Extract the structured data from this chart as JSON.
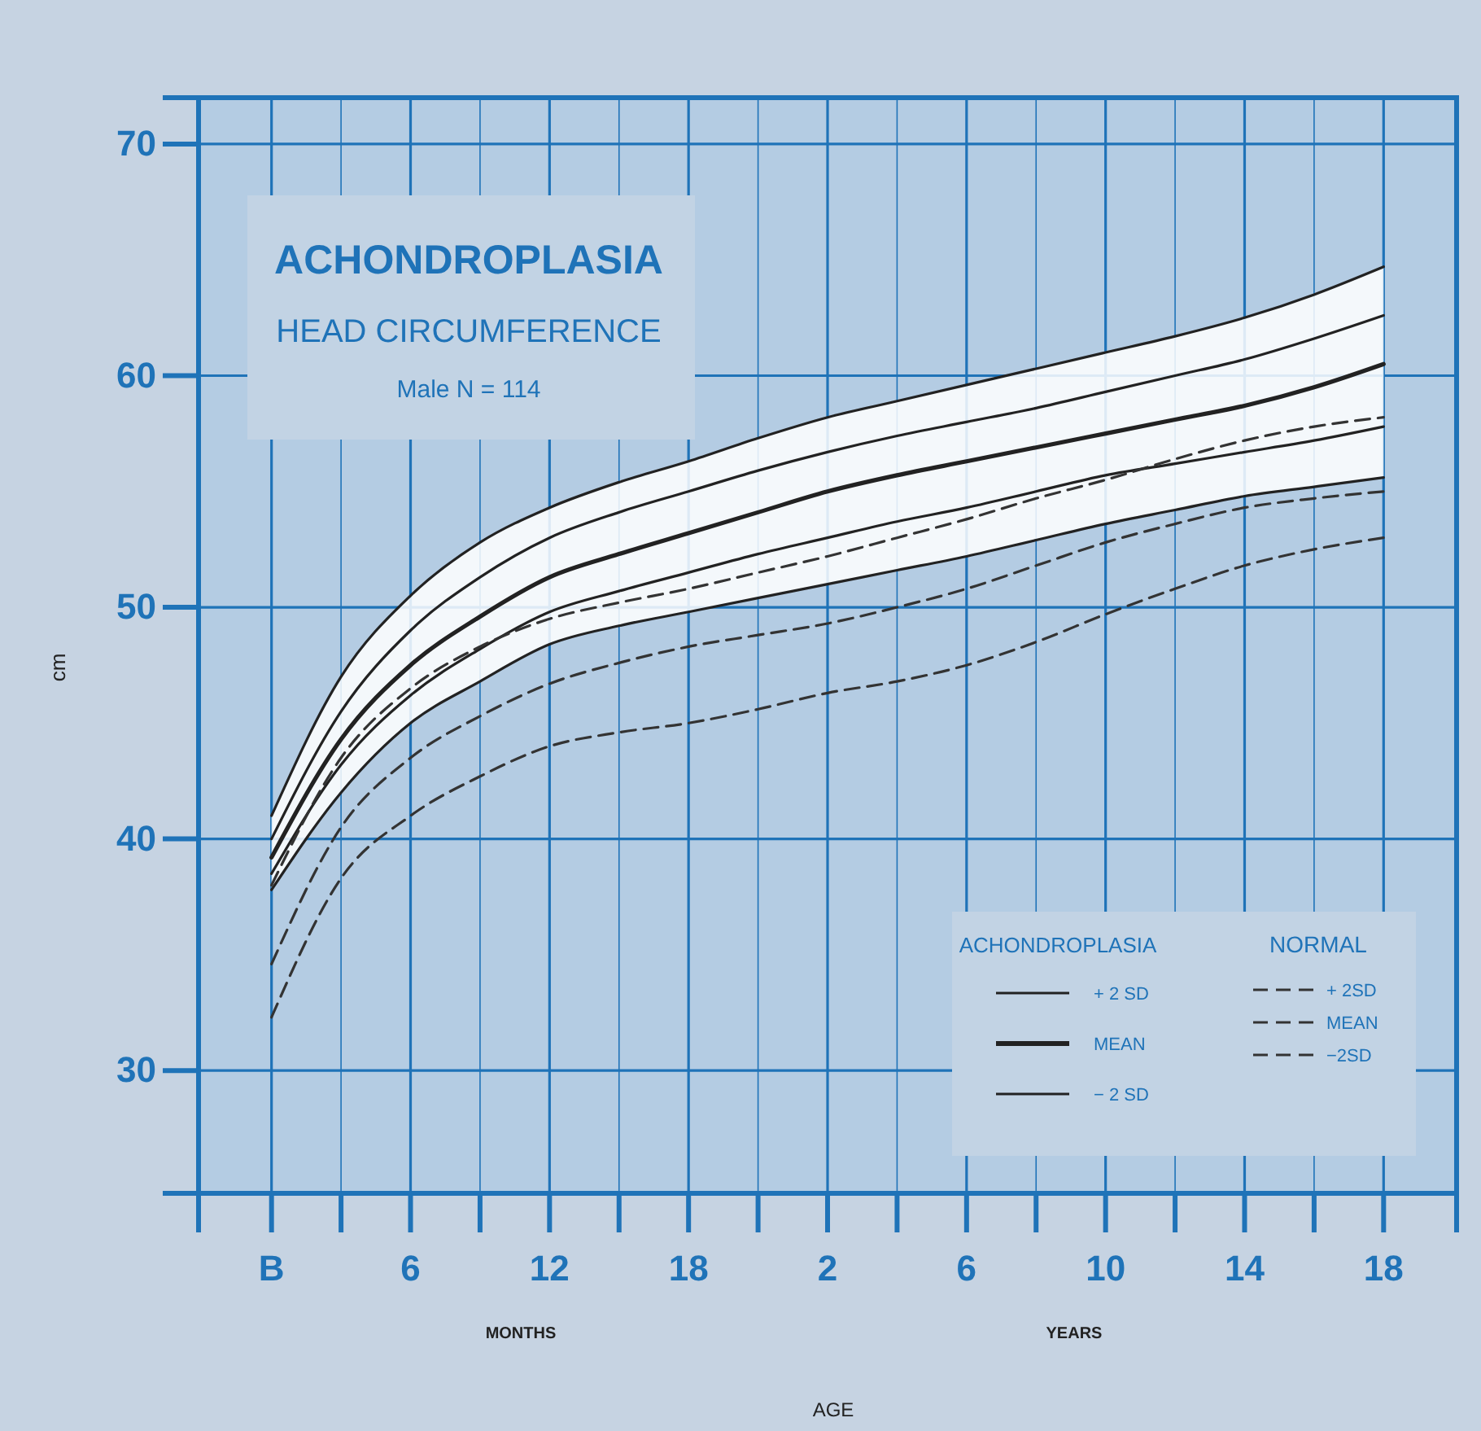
{
  "chart_data": {
    "type": "line",
    "title": "ACHONDROPLASIA",
    "subtitle": "HEAD CIRCUMFERENCE",
    "ylabel": "cm",
    "annotations": [
      "Male  N = 114",
      "MONTHS",
      "YEARS",
      "ACHONDROPLASIA",
      "NORMAL",
      "AGE"
    ],
    "categories": [
      "B",
      null,
      "6",
      null,
      "12",
      null,
      "18",
      null,
      "2",
      null,
      "6",
      null,
      "10",
      null,
      "14",
      null,
      "18"
    ],
    "ylim": [
      24.7,
      72
    ],
    "yticks": [
      30,
      40,
      50,
      60,
      70
    ],
    "grid": true,
    "legend": "bottom right",
    "series": [
      {
        "name": "+ 2 SD",
        "color": "#222222",
        "line_style": "solid",
        "values": [
          41,
          47,
          50.5,
          52.8,
          54.3,
          55.4,
          56.3,
          57.3,
          58.2,
          58.9,
          59.6,
          60.3,
          61,
          61.7,
          62.5,
          63.5,
          64.7
        ]
      },
      {
        "color": "#222222",
        "line_style": "solid",
        "values": [
          40,
          45.5,
          49,
          51.3,
          53,
          54.1,
          55,
          55.9,
          56.7,
          57.4,
          58,
          58.6,
          59.3,
          60,
          60.7,
          61.6,
          62.6
        ]
      },
      {
        "name": "MEAN",
        "color": "#222222",
        "line_style": "solid",
        "values": [
          39.2,
          44.3,
          47.5,
          49.6,
          51.3,
          52.3,
          53.2,
          54.1,
          55,
          55.7,
          56.3,
          56.9,
          57.5,
          58.1,
          58.7,
          59.5,
          60.5
        ],
        "lower": [
          37.8,
          42,
          45,
          46.8,
          48.4,
          49.2,
          49.8,
          50.4,
          51,
          51.6,
          52.2,
          52.9,
          53.6,
          54.2,
          54.8,
          55.2,
          55.6
        ],
        "upper": [
          41,
          47,
          50.5,
          52.8,
          54.3,
          55.4,
          56.3,
          57.3,
          58.2,
          58.9,
          59.6,
          60.3,
          61,
          61.7,
          62.5,
          63.5,
          64.7
        ]
      },
      {
        "color": "#222222",
        "line_style": "solid",
        "values": [
          38.5,
          43.2,
          46.2,
          48.2,
          49.8,
          50.7,
          51.5,
          52.3,
          53,
          53.7,
          54.3,
          55,
          55.7,
          56.2,
          56.7,
          57.2,
          57.8
        ]
      },
      {
        "name": "− 2 SD",
        "color": "#222222",
        "line_style": "solid",
        "values": [
          37.8,
          42,
          45,
          46.8,
          48.4,
          49.2,
          49.8,
          50.4,
          51,
          51.6,
          52.2,
          52.9,
          53.6,
          54.2,
          54.8,
          55.2,
          55.6
        ]
      },
      {
        "name": "+ 2SD",
        "color": "#333333",
        "line_style": "dashed",
        "values": [
          38,
          43.5,
          46.5,
          48.3,
          49.5,
          50.2,
          50.8,
          51.5,
          52.2,
          53,
          53.8,
          54.7,
          55.5,
          56.4,
          57.2,
          57.8,
          58.2
        ]
      },
      {
        "name": "MEAN",
        "color": "#333333",
        "line_style": "dashed",
        "values": [
          34.6,
          40.5,
          43.5,
          45.3,
          46.7,
          47.6,
          48.3,
          48.8,
          49.3,
          50,
          50.8,
          51.8,
          52.8,
          53.6,
          54.3,
          54.7,
          55
        ]
      },
      {
        "name": "−2SD",
        "color": "#333333",
        "line_style": "dashed",
        "values": [
          32.3,
          38.3,
          41,
          42.7,
          44,
          44.6,
          45,
          45.6,
          46.3,
          46.8,
          47.5,
          48.5,
          49.7,
          50.8,
          51.8,
          52.5,
          53
        ]
      }
    ]
  }
}
